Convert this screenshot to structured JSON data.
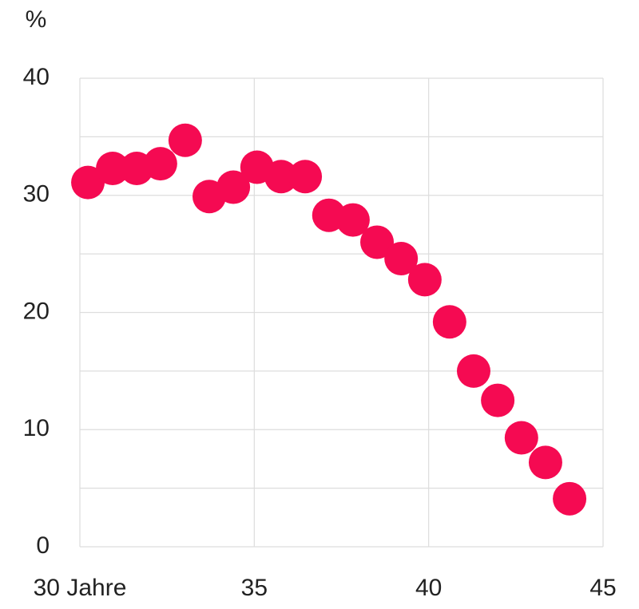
{
  "chart_data": {
    "type": "scatter",
    "y_unit": "%",
    "color": "#f50a52",
    "x": [
      30.23,
      30.94,
      31.63,
      32.31,
      33.02,
      33.71,
      34.4,
      35.08,
      35.77,
      36.46,
      37.14,
      37.83,
      38.52,
      39.21,
      39.89,
      40.6,
      41.29,
      41.98,
      42.66,
      43.35,
      44.04
    ],
    "values": [
      31.1,
      32.3,
      32.3,
      32.7,
      34.7,
      29.9,
      30.7,
      32.4,
      31.6,
      31.6,
      28.3,
      27.9,
      26.0,
      24.6,
      22.8,
      19.2,
      15.0,
      12.5,
      9.3,
      7.2,
      4.1
    ],
    "xlim": [
      30,
      45
    ],
    "xticks": [
      {
        "value": 30,
        "label": "30 Jahre"
      },
      35,
      40,
      45
    ],
    "ylim": [
      0,
      40
    ],
    "yticks": [
      0,
      10,
      20,
      30,
      40
    ],
    "ygrid": [
      0,
      5,
      10,
      15,
      20,
      25,
      30,
      35,
      40
    ],
    "grid": true
  }
}
